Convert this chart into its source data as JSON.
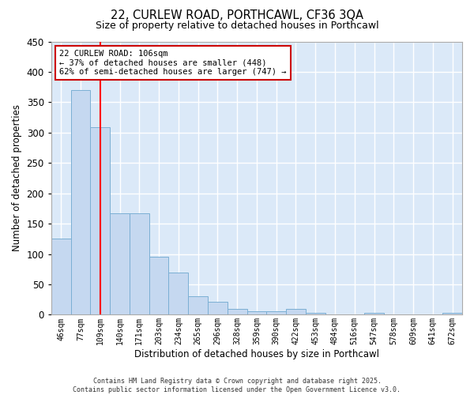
{
  "title_line1": "22, CURLEW ROAD, PORTHCAWL, CF36 3QA",
  "title_line2": "Size of property relative to detached houses in Porthcawl",
  "xlabel": "Distribution of detached houses by size in Porthcawl",
  "ylabel": "Number of detached properties",
  "categories": [
    "46sqm",
    "77sqm",
    "109sqm",
    "140sqm",
    "171sqm",
    "203sqm",
    "234sqm",
    "265sqm",
    "296sqm",
    "328sqm",
    "359sqm",
    "390sqm",
    "422sqm",
    "453sqm",
    "484sqm",
    "516sqm",
    "547sqm",
    "578sqm",
    "609sqm",
    "641sqm",
    "672sqm"
  ],
  "values": [
    126,
    370,
    309,
    167,
    167,
    95,
    70,
    30,
    21,
    9,
    6,
    6,
    9,
    3,
    0,
    0,
    3,
    0,
    0,
    0,
    3
  ],
  "bar_color": "#c5d8f0",
  "bar_edge_color": "#7bafd4",
  "figure_bg": "#ffffff",
  "plot_bg": "#dbe9f8",
  "grid_color": "#ffffff",
  "red_line_x": 2,
  "annotation_text": "22 CURLEW ROAD: 106sqm\n← 37% of detached houses are smaller (448)\n62% of semi-detached houses are larger (747) →",
  "annotation_box_facecolor": "#ffffff",
  "annotation_box_edgecolor": "#cc0000",
  "footer_line1": "Contains HM Land Registry data © Crown copyright and database right 2025.",
  "footer_line2": "Contains public sector information licensed under the Open Government Licence v3.0.",
  "ylim": [
    0,
    450
  ],
  "yticks": [
    0,
    50,
    100,
    150,
    200,
    250,
    300,
    350,
    400,
    450
  ]
}
